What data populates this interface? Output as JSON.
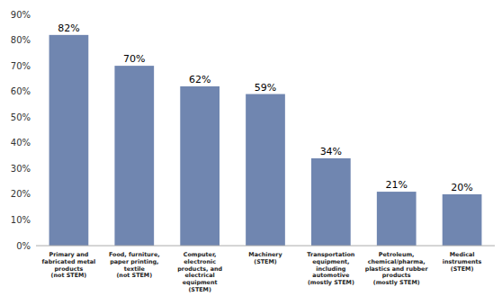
{
  "chart_data": {
    "type": "bar",
    "categories": [
      "Primary and\nfabricated metal\nproducts\n(not STEM)",
      "Food, furniture,\npaper printing,\ntextile\n(not STEM)",
      "Computer,\nelectronic\nproducts, and\nelectrical\nequipment\n(STEM)",
      "Machinery\n(STEM)",
      "Transportation\nequipment,\nincluding\nautomotive\n(mostly STEM)",
      "Petroleum,\nchemical/pharma,\nplastics and rubber\nproducts\n(mostly STEM)",
      "Medical\ninstruments\n(STEM)"
    ],
    "values": [
      82,
      70,
      62,
      59,
      34,
      21,
      20
    ],
    "value_labels": [
      "82%",
      "70%",
      "62%",
      "59%",
      "34%",
      "21%",
      "20%"
    ],
    "color": "#7086b0",
    "ylim": [
      0,
      90
    ],
    "yticks": [
      {
        "value": 0,
        "label": "0%"
      },
      {
        "value": 10,
        "label": "10%"
      },
      {
        "value": 20,
        "label": "20%"
      },
      {
        "value": 30,
        "label": "30%"
      },
      {
        "value": 40,
        "label": "40%"
      },
      {
        "value": 50,
        "label": "50%"
      },
      {
        "value": 60,
        "label": "60%"
      },
      {
        "value": 70,
        "label": "70%"
      },
      {
        "value": 80,
        "label": "80%"
      },
      {
        "value": 90,
        "label": "90%"
      }
    ],
    "grid": false,
    "data_labels": true
  }
}
